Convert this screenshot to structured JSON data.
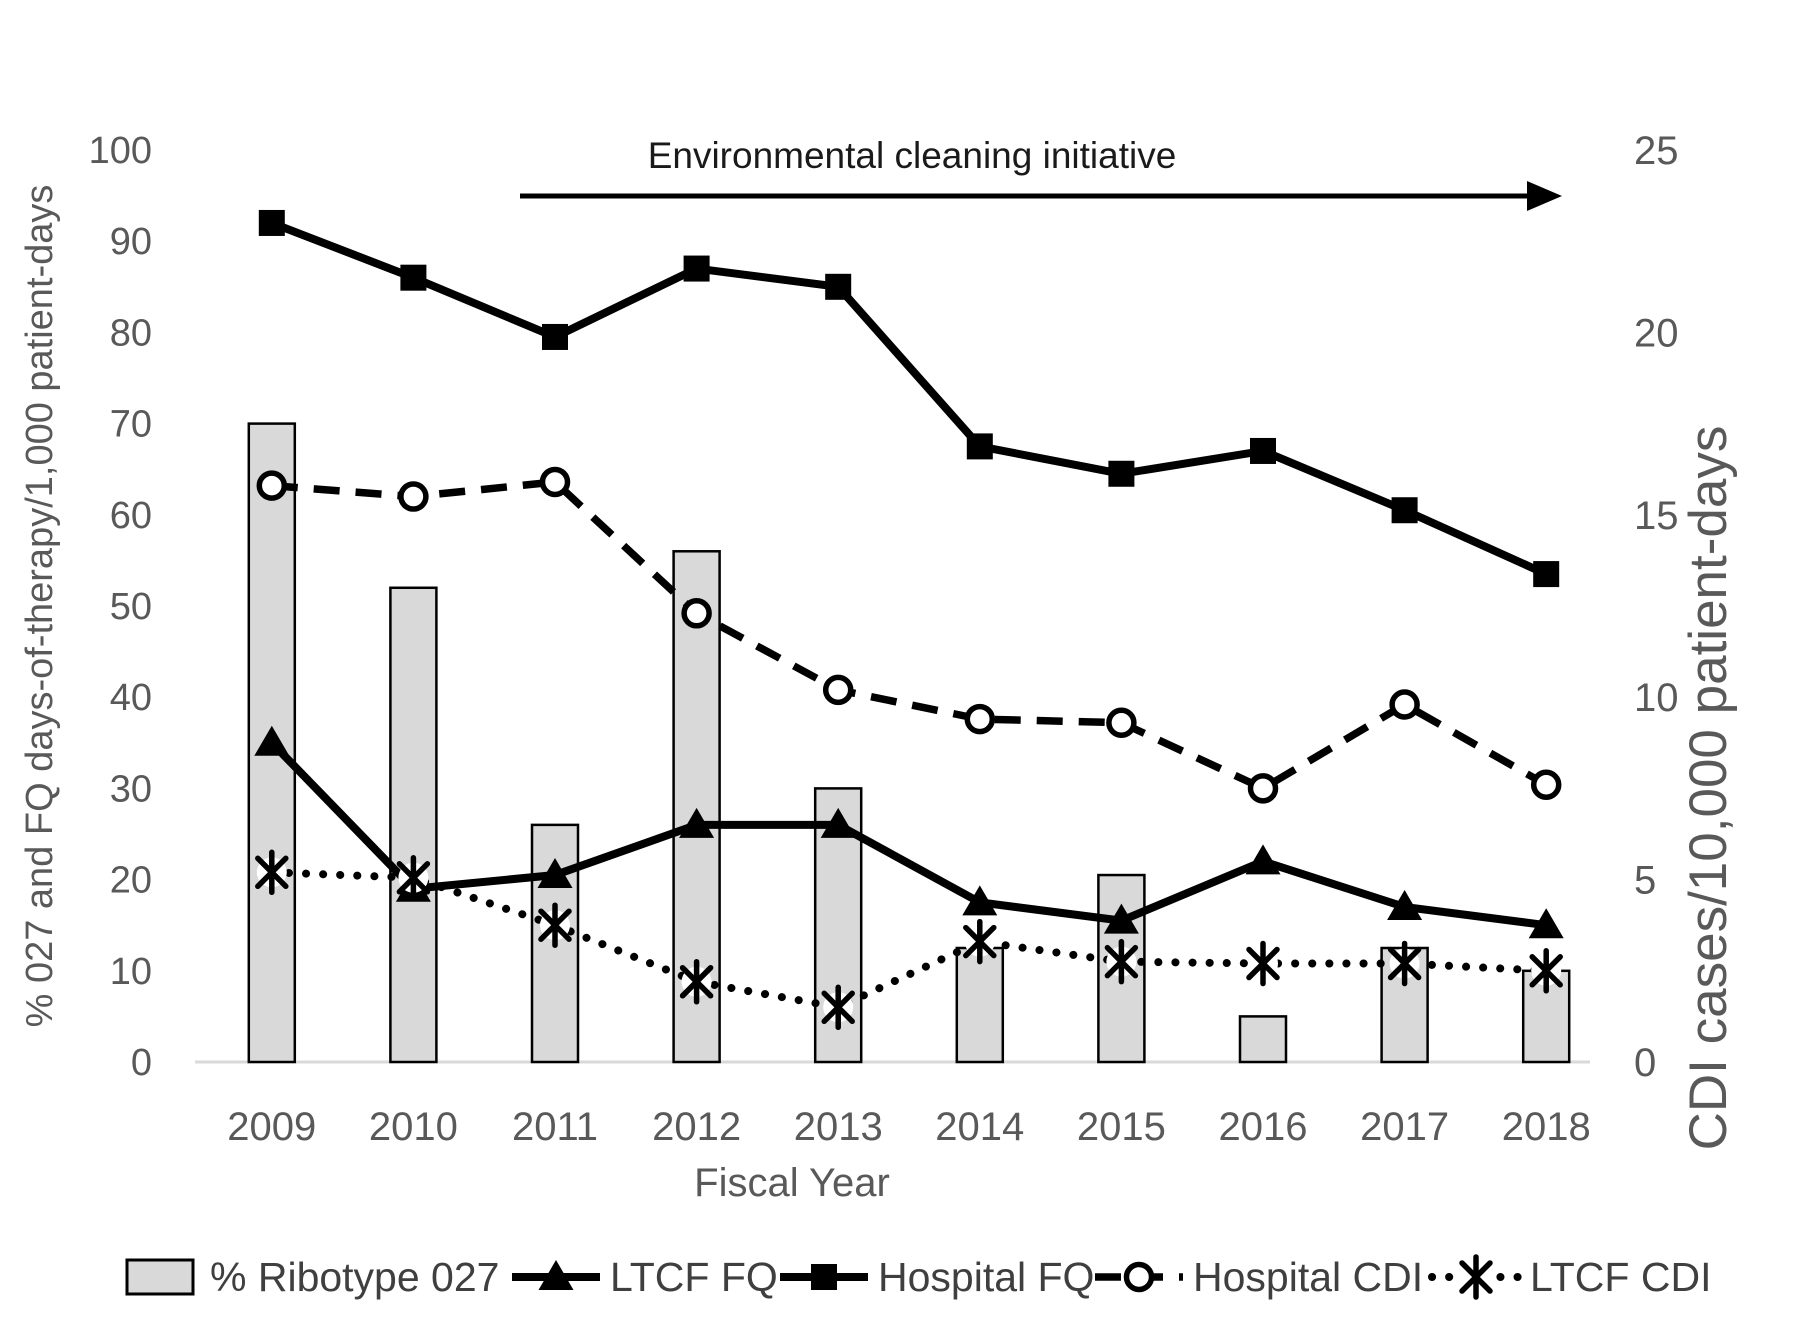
{
  "chart_data": {
    "type": "combo",
    "title": "",
    "categories": [
      "2009",
      "2010",
      "2011",
      "2012",
      "2013",
      "2014",
      "2015",
      "2016",
      "2017",
      "2018"
    ],
    "series": [
      {
        "name": "% Ribotype 027",
        "type": "bar",
        "style": "solid",
        "axis": "left",
        "marker": "bar-swatch",
        "values": [
          70,
          52,
          26,
          56,
          30,
          12.5,
          20.5,
          5,
          12.5,
          10
        ]
      },
      {
        "name": "LTCF FQ",
        "type": "line",
        "style": "solid",
        "axis": "left",
        "marker": "filled-triangle",
        "values": [
          35,
          19,
          20.5,
          26,
          26,
          17.5,
          15.5,
          22,
          17,
          15
        ]
      },
      {
        "name": "Hospital FQ",
        "type": "line",
        "style": "solid",
        "axis": "left",
        "marker": "filled-square",
        "values": [
          92,
          86,
          79.5,
          87,
          85,
          67.5,
          64.5,
          67,
          60.5,
          53.5
        ]
      },
      {
        "name": "Hospital CDI",
        "type": "line",
        "style": "dashed",
        "axis": "right",
        "marker": "open-circle",
        "values": [
          15.8,
          15.5,
          15.9,
          12.3,
          10.2,
          9.4,
          9.3,
          7.5,
          9.8,
          7.6
        ]
      },
      {
        "name": "LTCF CDI",
        "type": "line",
        "style": "dotted",
        "axis": "right",
        "marker": "asterisk",
        "values": [
          5.2,
          5.05,
          3.75,
          2.2,
          1.5,
          3.3,
          2.75,
          2.7,
          2.7,
          2.5
        ]
      }
    ],
    "axes": {
      "left": {
        "label": "% 027 and FQ days-of-therapy/1,000 patient-days",
        "min": 0,
        "max": 100,
        "ticks": [
          0,
          10,
          20,
          30,
          40,
          50,
          60,
          70,
          80,
          90,
          100
        ]
      },
      "right": {
        "label": "CDI cases/10,000 patient-days",
        "min": 0,
        "max": 25,
        "ticks": [
          0,
          5,
          10,
          15,
          20,
          25
        ]
      },
      "x": {
        "label": "Fiscal Year"
      }
    },
    "annotation": {
      "text": "Environmental cleaning initiative",
      "arrow_direction": "right"
    },
    "legend_position": "bottom",
    "gridlines": false,
    "colors": {
      "series": "#000000",
      "bar_fill": "#d9d9d9",
      "baseline": "#d9d9d9",
      "tick_text": "#595959",
      "legend_text": "#3f3f3f",
      "annotation_text": "#1a1a1a"
    }
  }
}
